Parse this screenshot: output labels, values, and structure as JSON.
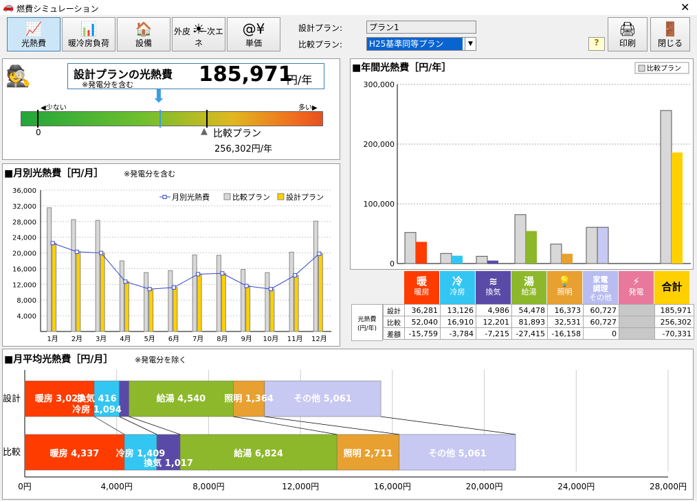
{
  "window": {
    "title": "燃費シミュレーション",
    "close": "✕"
  },
  "toolbar": {
    "tabs": [
      {
        "label": "光熱費",
        "icon": "📈"
      },
      {
        "label": "暖冷房負荷",
        "icon": "📊"
      },
      {
        "label": "設備",
        "icon": "🏠"
      },
      {
        "label": "外皮・一次エネ",
        "icon": "☀"
      },
      {
        "label": "単価",
        "icon": "@¥"
      }
    ],
    "print": "印刷",
    "close": "閉じる",
    "help": "?"
  },
  "plans": {
    "design_label": "設計プラン:",
    "design_value": "プラン1",
    "compare_label": "比較プラン:",
    "compare_value": "H25基準同等プラン"
  },
  "summary": {
    "title": "設計プランの光熱費",
    "value": "185,971",
    "unit": "円/年",
    "note": "※発電分を含む",
    "few": "◀少ない",
    "many": "多い▶",
    "zero": "0",
    "compare_label": "比較プラン",
    "compare_value": "256,302円/年"
  },
  "monthly": {
    "title": "■月別光熱費［円/月］",
    "note": "※発電分を含む"
  },
  "annual": {
    "title": "■年間光熱費［円/年］",
    "legend": "比較プラン"
  },
  "avg": {
    "title": "■月平均光熱費［円/月］",
    "note": "※発電分を除く"
  },
  "table": {
    "categories": [
      "暖房",
      "冷房",
      "換気",
      "給湯",
      "照明",
      "家電調理その他",
      "発電",
      "合計"
    ],
    "cat_labels": [
      [
        "暖",
        "暖房"
      ],
      [
        "冷",
        "冷房"
      ],
      [
        "≋",
        "換気"
      ],
      [
        "湯",
        "給湯"
      ],
      [
        "💡",
        "照明"
      ],
      [
        "家電\n調理",
        "その他"
      ],
      [
        "⚡",
        "発電"
      ],
      [
        "合計",
        ""
      ]
    ],
    "row_head": "光熱費\n(円/年)",
    "rows": [
      {
        "label": "設計",
        "values": [
          "36,281",
          "13,126",
          "4,986",
          "54,478",
          "16,373",
          "60,727",
          "",
          "185,971"
        ]
      },
      {
        "label": "比較",
        "values": [
          "52,040",
          "16,910",
          "12,201",
          "81,893",
          "32,531",
          "60,727",
          "",
          "256,302"
        ]
      },
      {
        "label": "差額",
        "values": [
          "-15,759",
          "-3,784",
          "-7,215",
          "-27,415",
          "-16,158",
          "0",
          "",
          "-70,331"
        ]
      }
    ]
  },
  "chart_data": [
    {
      "type": "bar",
      "title": "月別光熱費［円/月］",
      "categories": [
        "1月",
        "2月",
        "3月",
        "4月",
        "5月",
        "6月",
        "7月",
        "8月",
        "9月",
        "10月",
        "11月",
        "12月"
      ],
      "series": [
        {
          "name": "比較プラン",
          "values": [
            31500,
            28500,
            28300,
            18000,
            15000,
            15500,
            19500,
            19400,
            15800,
            15000,
            20200,
            28100
          ]
        },
        {
          "name": "設計プラン",
          "values": [
            22500,
            20300,
            20000,
            12700,
            10800,
            11200,
            14600,
            14800,
            11600,
            10800,
            14300,
            19800
          ]
        },
        {
          "name": "月別光熱費",
          "values": [
            22500,
            20300,
            20000,
            12700,
            10800,
            11200,
            14600,
            14800,
            11600,
            10800,
            14300,
            19800
          ]
        }
      ],
      "ylim": [
        0,
        36000
      ],
      "yticks": [
        "4,000",
        "8,000",
        "12,000",
        "16,000",
        "20,000",
        "24,000",
        "28,000",
        "32,000",
        "36,000"
      ],
      "legend": "top-right"
    },
    {
      "type": "bar",
      "title": "年間光熱費［円/年］",
      "categories": [
        "暖房",
        "冷房",
        "換気",
        "給湯",
        "照明",
        "家電調理その他",
        "発電",
        "合計"
      ],
      "series": [
        {
          "name": "比較プラン",
          "values": [
            52040,
            16910,
            12201,
            81893,
            32531,
            60727,
            0,
            256302
          ]
        },
        {
          "name": "設計",
          "values": [
            36281,
            13126,
            4986,
            54478,
            16373,
            60727,
            0,
            185971
          ]
        }
      ],
      "ylim": [
        0,
        300000
      ],
      "yticks": [
        "0",
        "100,000",
        "200,000",
        "300,000"
      ],
      "legend": "top-right"
    },
    {
      "type": "bar",
      "title": "月平均光熱費［円/月］",
      "categories": [
        "設計",
        "比較"
      ],
      "series": [
        {
          "name": "暖房",
          "values": [
            3023,
            4337
          ]
        },
        {
          "name": "冷房",
          "values": [
            1094,
            1409
          ]
        },
        {
          "name": "換気",
          "values": [
            416,
            1017
          ]
        },
        {
          "name": "給湯",
          "values": [
            4540,
            6824
          ]
        },
        {
          "name": "照明",
          "values": [
            1364,
            2711
          ]
        },
        {
          "name": "その他",
          "values": [
            5061,
            5061
          ]
        }
      ],
      "xlim": [
        0,
        28000
      ],
      "xticks": [
        "0円",
        "4,000円",
        "8,000円",
        "12,000円",
        "16,000円",
        "20,000円",
        "24,000円",
        "28,000円"
      ]
    }
  ],
  "colors": {
    "heat": "#ff3c00",
    "cool": "#33c6f2",
    "vent": "#5a4aa8",
    "water": "#8db82b",
    "light": "#e8a030",
    "other": "#c7c9f2",
    "gen": "#e8799c",
    "total": "#ffd000",
    "cmp": "#d8d8d8",
    "dsg": "#ffd000"
  }
}
